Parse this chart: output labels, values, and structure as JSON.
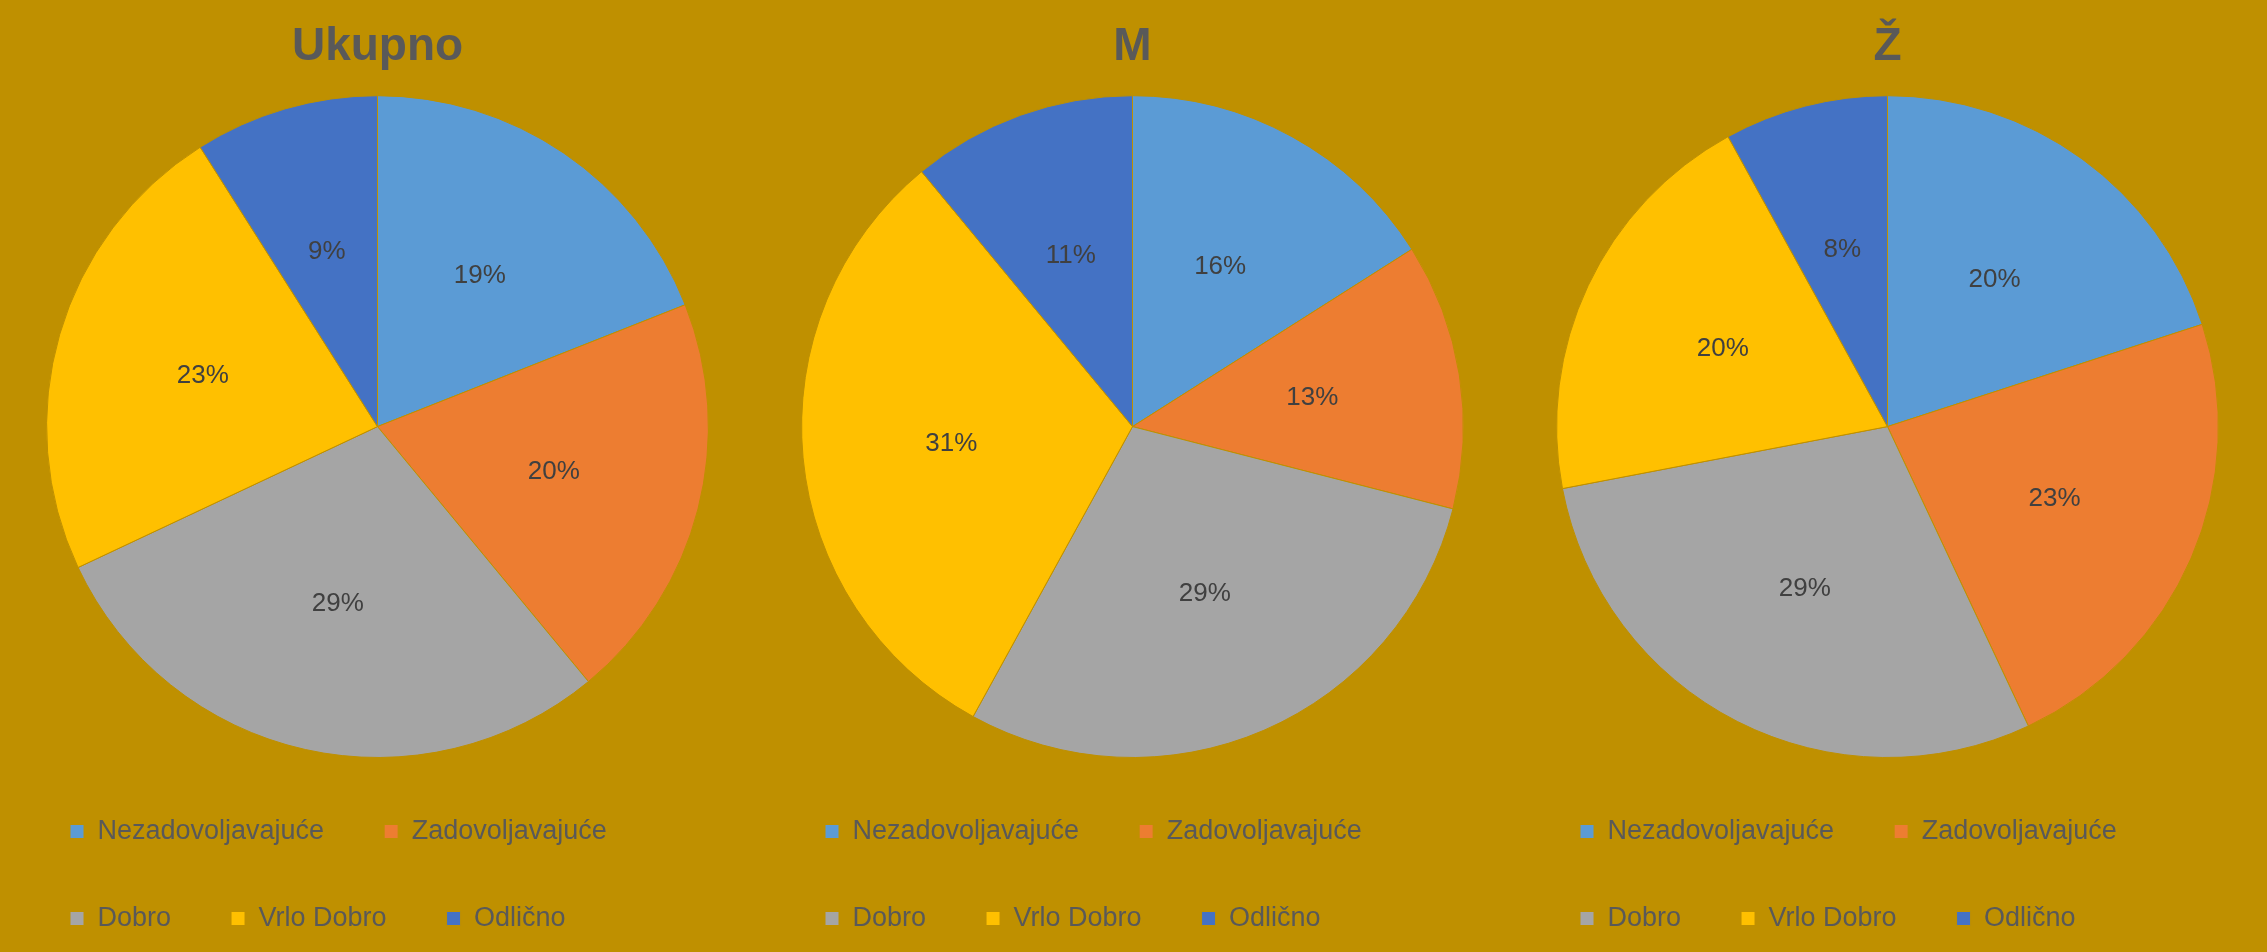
{
  "chart_data": [
    {
      "type": "pie",
      "title": "Ukupno",
      "categories": [
        "Nezadovoljavajuće",
        "Zadovoljavajuće",
        "Dobro",
        "Vrlo Dobro",
        "Odlično"
      ],
      "values": [
        19,
        20,
        29,
        23,
        9
      ],
      "value_labels": [
        "19%",
        "20%",
        "29%",
        "23%",
        "9%"
      ],
      "colors": [
        "#5b9bd5",
        "#ed7d31",
        "#a5a5a5",
        "#ffc000",
        "#4472c4"
      ],
      "legend": "bottom"
    },
    {
      "type": "pie",
      "title": "M",
      "categories": [
        "Nezadovoljavajuće",
        "Zadovoljavajuće",
        "Dobro",
        "Vrlo Dobro",
        "Odlično"
      ],
      "values": [
        16,
        13,
        29,
        31,
        11
      ],
      "value_labels": [
        "16%",
        "13%",
        "29%",
        "31%",
        "11%"
      ],
      "colors": [
        "#5b9bd5",
        "#ed7d31",
        "#a5a5a5",
        "#ffc000",
        "#4472c4"
      ],
      "legend": "bottom"
    },
    {
      "type": "pie",
      "title": "Ž",
      "categories": [
        "Nezadovoljavajuće",
        "Zadovoljavajuće",
        "Dobro",
        "Vrlo Dobro",
        "Odlično"
      ],
      "values": [
        20,
        23,
        29,
        20,
        8
      ],
      "value_labels": [
        "20%",
        "23%",
        "29%",
        "20%",
        "8%"
      ],
      "colors": [
        "#5b9bd5",
        "#ed7d31",
        "#a5a5a5",
        "#ffc000",
        "#4472c4"
      ],
      "legend": "bottom"
    }
  ]
}
